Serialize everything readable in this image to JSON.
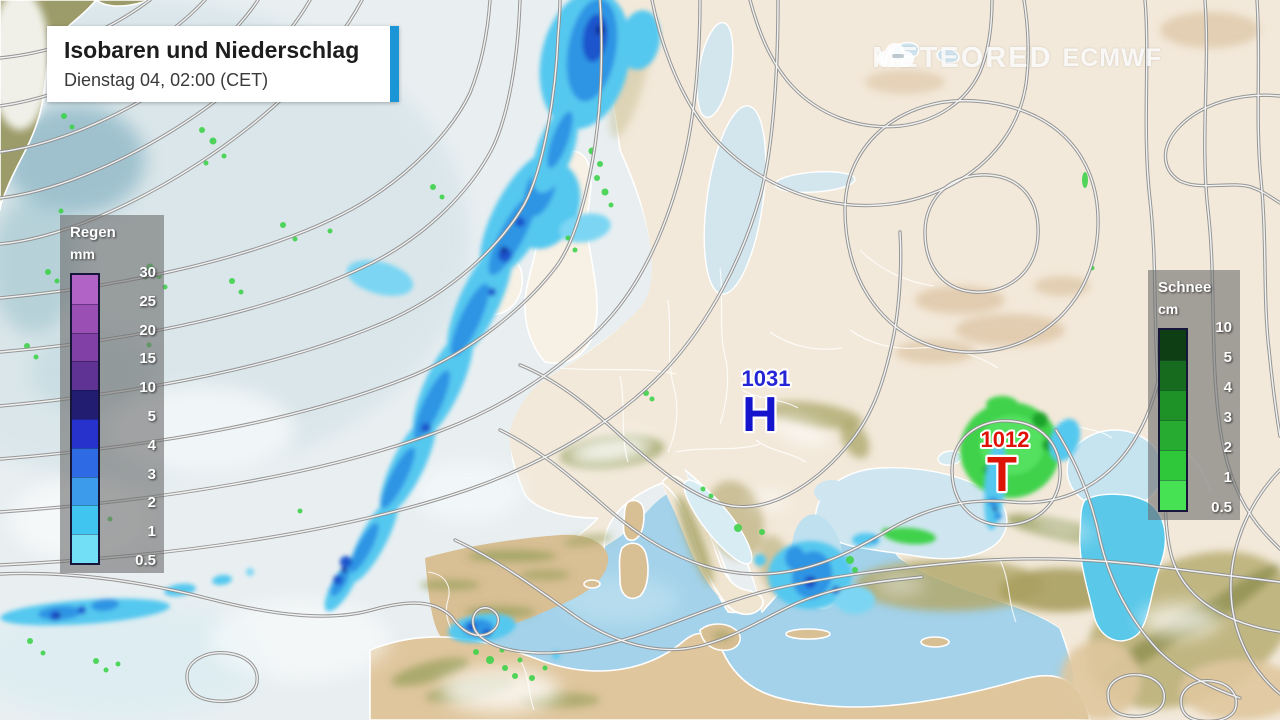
{
  "header": {
    "title": "Isobaren und Niederschlag",
    "subtitle": "Dienstag 04, 02:00 (CET)",
    "accent_color": "#1a95d6"
  },
  "watermark": {
    "brand": "METEORED",
    "model": "ECMWF"
  },
  "legends": {
    "rain": {
      "title": "Regen",
      "unit": "mm",
      "labels": [
        "30",
        "25",
        "20",
        "15",
        "10",
        "5",
        "4",
        "3",
        "2",
        "1",
        "0.5"
      ],
      "colors": [
        "#b164c6",
        "#9a4fb5",
        "#8140a6",
        "#5f3394",
        "#221d70",
        "#2732cd",
        "#2e6ae4",
        "#3d9bec",
        "#3fc5f0",
        "#72dff6"
      ]
    },
    "snow": {
      "title": "Schnee",
      "unit": "cm",
      "labels": [
        "10",
        "5",
        "4",
        "3",
        "2",
        "1",
        "0.5"
      ],
      "colors": [
        "#0e3e14",
        "#166b1e",
        "#1f9227",
        "#27ac31",
        "#2fc83b",
        "#47e253"
      ]
    }
  },
  "pressure_centers": {
    "high": {
      "symbol": "H",
      "value": "1031",
      "color": "#1414cc"
    },
    "low": {
      "symbol": "T",
      "value": "1012",
      "color": "#dd1507"
    }
  },
  "map_colors": {
    "isobar": "#8e8e8e",
    "sea_atlantic": "#e9eff1",
    "sea_mediterranean": "#a3d2ea",
    "sea_caspian": "#5ac8e9",
    "land_plain": "#f3e9da",
    "land_arid": "#dfc69d",
    "terrain_highland": "#9aa05e",
    "precip_light": "#55c8ef",
    "precip_moderate": "#2e94e4",
    "precip_heavy": "#1f55cc",
    "snow_speckle": "#3fd24b"
  }
}
